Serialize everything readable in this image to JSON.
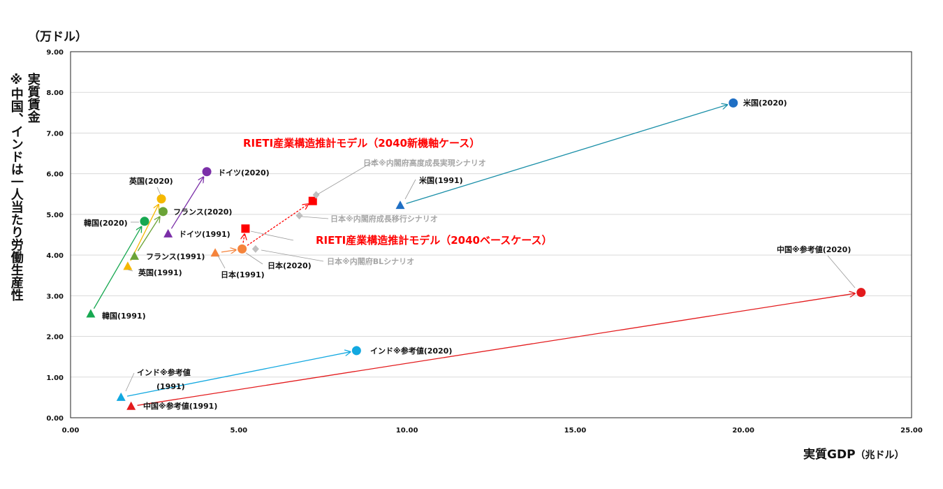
{
  "chart_data": {
    "type": "scatter",
    "title": "",
    "xlabel": "実質GDP（兆ドル）",
    "ylabel": "実質賃金 ※中国、インドは一人当たり労働生産性",
    "y_unit": "（万ドル）",
    "xlim": [
      0,
      25
    ],
    "ylim": [
      0,
      9
    ],
    "x_ticks": [
      "0.00",
      "5.00",
      "10.00",
      "15.00",
      "20.00",
      "25.00"
    ],
    "y_ticks": [
      "0.00",
      "1.00",
      "2.00",
      "3.00",
      "4.00",
      "5.00",
      "6.00",
      "7.00",
      "8.00",
      "9.00"
    ],
    "grid": "horizontal",
    "legend": "none",
    "series": [
      {
        "name": "米国",
        "color": "#1f6fc4",
        "points": [
          {
            "label": "米国(1991)",
            "x": 9.8,
            "y": 5.22,
            "marker": "triangle"
          },
          {
            "label": "米国(2020)",
            "x": 19.7,
            "y": 7.74,
            "marker": "circle"
          }
        ]
      },
      {
        "name": "中国※参考値",
        "color": "#e31a1c",
        "points": [
          {
            "label": "中国※参考値(1991)",
            "x": 1.8,
            "y": 0.28,
            "marker": "triangle"
          },
          {
            "label": "中国※参考値(2020)",
            "x": 23.5,
            "y": 3.08,
            "marker": "circle"
          }
        ]
      },
      {
        "name": "インド※参考値",
        "color": "#12a8e0",
        "points": [
          {
            "label": "インド※参考値 (1991)",
            "x": 1.5,
            "y": 0.5,
            "marker": "triangle"
          },
          {
            "label": "インド※参考値(2020)",
            "x": 8.5,
            "y": 1.65,
            "marker": "circle"
          }
        ]
      },
      {
        "name": "日本",
        "color": "#f5843c",
        "points": [
          {
            "label": "日本(1991)",
            "x": 4.3,
            "y": 4.05,
            "marker": "triangle"
          },
          {
            "label": "日本(2020)",
            "x": 5.1,
            "y": 4.15,
            "marker": "circle"
          }
        ]
      },
      {
        "name": "ドイツ",
        "color": "#7b2fa8",
        "points": [
          {
            "label": "ドイツ(1991)",
            "x": 2.9,
            "y": 4.52,
            "marker": "triangle"
          },
          {
            "label": "ドイツ(2020)",
            "x": 4.05,
            "y": 6.05,
            "marker": "circle"
          }
        ]
      },
      {
        "name": "英国",
        "color": "#f5b800",
        "points": [
          {
            "label": "英国(1991)",
            "x": 1.7,
            "y": 3.72,
            "marker": "triangle"
          },
          {
            "label": "英国(2020)",
            "x": 2.7,
            "y": 5.38,
            "marker": "circle"
          }
        ]
      },
      {
        "name": "フランス",
        "color": "#6aa336",
        "points": [
          {
            "label": "フランス(1991)",
            "x": 1.9,
            "y": 3.97,
            "marker": "triangle"
          },
          {
            "label": "フランス(2020)",
            "x": 2.75,
            "y": 5.07,
            "marker": "circle"
          }
        ]
      },
      {
        "name": "韓国",
        "color": "#17a851",
        "points": [
          {
            "label": "韓国(1991)",
            "x": 0.6,
            "y": 2.55,
            "marker": "triangle"
          },
          {
            "label": "韓国(2020)",
            "x": 2.2,
            "y": 4.83,
            "marker": "circle"
          }
        ]
      },
      {
        "name": "RIETI産業構造推計モデル（2040新機軸ケース）",
        "color": "#ff0000",
        "points": [
          {
            "label": "RIETI産業構造推計モデル（2040新機軸ケース）",
            "x": 7.2,
            "y": 5.33,
            "marker": "square"
          }
        ]
      },
      {
        "name": "RIETI産業構造推計モデル（2040ベースケース）",
        "color": "#ff0000",
        "points": [
          {
            "label": "RIETI産業構造推計モデル（2040ベースケース）",
            "x": 5.2,
            "y": 4.65,
            "marker": "square"
          }
        ]
      },
      {
        "name": "日本※内閣府高度成長実現シナリオ",
        "color": "#bfbfbf",
        "points": [
          {
            "label": "日本※内閣府高度成長実現シナリオ",
            "x": 7.3,
            "y": 5.48,
            "marker": "diamond"
          }
        ]
      },
      {
        "name": "日本※内閣府成長移行シナリオ",
        "color": "#bfbfbf",
        "points": [
          {
            "label": "日本※内閣府成長移行シナリオ",
            "x": 6.8,
            "y": 4.97,
            "marker": "diamond"
          }
        ]
      },
      {
        "name": "日本※内閣府BLシナリオ",
        "color": "#bfbfbf",
        "points": [
          {
            "label": "日本※内閣府BLシナリオ",
            "x": 5.5,
            "y": 4.15,
            "marker": "diamond"
          }
        ]
      }
    ],
    "annotations": [
      "RIETI産業構造推計モデル（2040新機軸ケース）",
      "RIETI産業構造推計モデル（2040ベースケース）"
    ]
  },
  "labels": {
    "unit": "（万ドル）",
    "ylabel_line1": "実質賃金",
    "ylabel_line2": "※中国、インドは一人当たり労働生産性",
    "xlabel_main": "実質GDP",
    "xlabel_unit": "（兆ドル）"
  }
}
